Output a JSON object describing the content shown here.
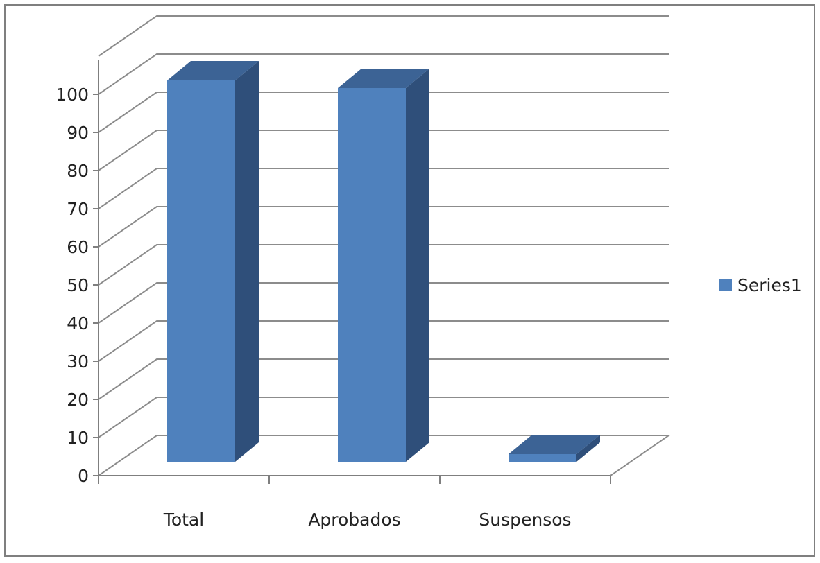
{
  "chart_data": {
    "type": "bar",
    "categories": [
      "Total",
      "Aprobados",
      "Suspensos"
    ],
    "series": [
      {
        "name": "Series1",
        "values": [
          100,
          98,
          2
        ]
      }
    ],
    "yticks": [
      0,
      10,
      20,
      30,
      40,
      50,
      60,
      70,
      80,
      90,
      100
    ],
    "ylim": [
      0,
      110
    ],
    "grid": true,
    "legend": "right",
    "colors": {
      "bar_front": "#4f81bd",
      "bar_side": "#2f4f7a",
      "bar_top": "#3c6395",
      "grid": "#8c8c8c",
      "axis": "#7f7f7f"
    }
  }
}
